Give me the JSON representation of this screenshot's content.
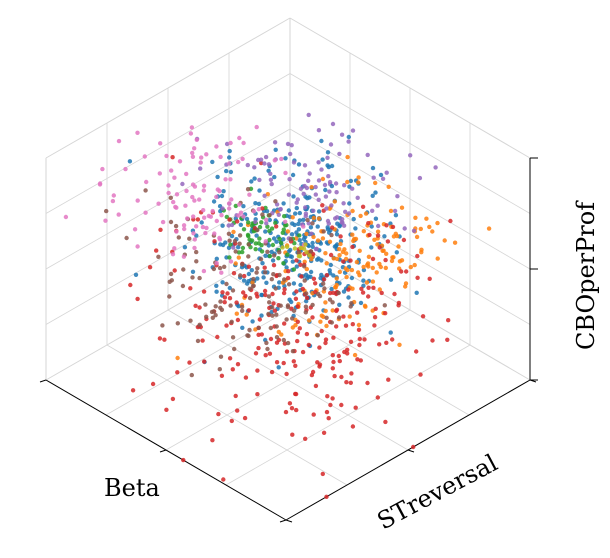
{
  "chart_data": {
    "type": "scatter",
    "projection": "3d",
    "grid": true,
    "xlabel": "Beta",
    "ylabel": "STreversal",
    "zlabel": "CBOperProf",
    "colors": [
      "#1f77b4",
      "#ff7f0e",
      "#2ca02c",
      "#d62728",
      "#9467bd",
      "#8c564b",
      "#e377c2",
      "#bcbd22"
    ],
    "clusters": [
      {
        "color": "#1f77b4",
        "center": [
          0.52,
          0.5,
          0.62
        ],
        "spread": [
          0.14,
          0.13,
          0.14
        ],
        "count": 320
      },
      {
        "color": "#ff7f0e",
        "center": [
          0.58,
          0.68,
          0.5
        ],
        "spread": [
          0.12,
          0.16,
          0.12
        ],
        "count": 170
      },
      {
        "color": "#2ca02c",
        "center": [
          0.4,
          0.48,
          0.58
        ],
        "spread": [
          0.06,
          0.05,
          0.06
        ],
        "count": 60
      },
      {
        "color": "#d62728",
        "center": [
          0.62,
          0.42,
          0.4
        ],
        "spread": [
          0.2,
          0.2,
          0.2
        ],
        "count": 260
      },
      {
        "color": "#9467bd",
        "center": [
          0.38,
          0.7,
          0.62
        ],
        "spread": [
          0.14,
          0.13,
          0.08
        ],
        "count": 110
      },
      {
        "color": "#8c564b",
        "center": [
          0.5,
          0.34,
          0.52
        ],
        "spread": [
          0.16,
          0.12,
          0.12
        ],
        "count": 140
      },
      {
        "color": "#e377c2",
        "center": [
          0.22,
          0.42,
          0.7
        ],
        "spread": [
          0.16,
          0.14,
          0.1
        ],
        "count": 110
      },
      {
        "color": "#bcbd22",
        "center": [
          0.5,
          0.55,
          0.55
        ],
        "spread": [
          0.02,
          0.02,
          0.02
        ],
        "count": 10
      }
    ],
    "outliers": [
      {
        "color": "#1f77b4",
        "xyz": [
          0.55,
          0.7,
          1.0
        ]
      },
      {
        "color": "#1f77b4",
        "xyz": [
          0.6,
          0.75,
          0.86
        ]
      },
      {
        "color": "#1f77b4",
        "xyz": [
          0.5,
          0.68,
          0.76
        ]
      },
      {
        "color": "#ff7f0e",
        "xyz": [
          0.85,
          0.98,
          0.6
        ]
      },
      {
        "color": "#e377c2",
        "xyz": [
          0.05,
          0.25,
          0.95
        ]
      },
      {
        "color": "#d62728",
        "xyz": [
          0.95,
          0.2,
          0.05
        ]
      }
    ]
  }
}
